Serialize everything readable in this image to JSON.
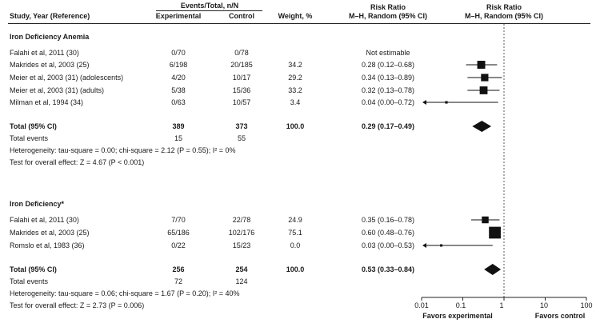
{
  "header": {
    "study_col": "Study, Year (Reference)",
    "events_group": "Events/Total, n/N",
    "experimental_col": "Experimental",
    "control_col": "Control",
    "weight_col": "Weight, %",
    "rr_col_line1": "Risk Ratio",
    "rr_col_line2": "M–H, Random (95% CI)",
    "plot_col_line1": "Risk Ratio",
    "plot_col_line2": "M–H, Random (95% CI)"
  },
  "groups": [
    {
      "title": "Iron Deficiency Anemia",
      "studies": [
        {
          "study": "Falahi et al, 2011 (30)",
          "exp": "0/70",
          "ctrl": "0/78",
          "weight": "",
          "rr_text": "Not estimable"
        },
        {
          "study": "Makrides et al, 2003 (25)",
          "exp": "6/198",
          "ctrl": "20/185",
          "weight": "34.2",
          "rr_text": "0.28 (0.12–0.68)"
        },
        {
          "study": "Meier et al, 2003 (31) (adolescents)",
          "exp": "4/20",
          "ctrl": "10/17",
          "weight": "29.2",
          "rr_text": "0.34 (0.13–0.89)"
        },
        {
          "study": "Meier et al, 2003 (31) (adults)",
          "exp": "5/38",
          "ctrl": "15/36",
          "weight": "33.2",
          "rr_text": "0.32 (0.13–0.78)"
        },
        {
          "study": "Milman et al, 1994 (34)",
          "exp": "0/63",
          "ctrl": "10/57",
          "weight": "3.4",
          "rr_text": "0.04 (0.00–0.72)"
        }
      ],
      "total_label": "Total (95% CI)",
      "total_exp": "389",
      "total_ctrl": "373",
      "total_weight": "100.0",
      "total_rr_text": "0.29 (0.17–0.49)",
      "events_label": "Total events",
      "events_exp": "15",
      "events_ctrl": "55",
      "heterogeneity": "Heterogeneity: tau-square = 0.00; chi-square = 2.12 (P = 0.55); I² = 0%",
      "overall_effect": "Test for overall effect: Z = 4.67 (P < 0.001)"
    },
    {
      "title": "Iron Deficiency*",
      "studies": [
        {
          "study": "Falahi et al, 2011 (30)",
          "exp": "7/70",
          "ctrl": "22/78",
          "weight": "24.9",
          "rr_text": "0.35 (0.16–0.78)"
        },
        {
          "study": "Makrides et al, 2003 (25)",
          "exp": "65/186",
          "ctrl": "102/176",
          "weight": "75.1",
          "rr_text": "0.60 (0.48–0.76)"
        },
        {
          "study": "Romslo et al, 1983 (36)",
          "exp": "0/22",
          "ctrl": "15/23",
          "weight": "0.0",
          "rr_text": "0.03 (0.00–0.53)"
        }
      ],
      "total_label": "Total (95% CI)",
      "total_exp": "256",
      "total_ctrl": "254",
      "total_weight": "100.0",
      "total_rr_text": "0.53 (0.33–0.84)",
      "events_label": "Total events",
      "events_exp": "72",
      "events_ctrl": "124",
      "heterogeneity": "Heterogeneity: tau-square = 0.06; chi-square = 1.67 (P = 0.20); I² = 40%",
      "overall_effect": "Test for overall effect: Z = 2.73 (P = 0.006)"
    }
  ],
  "axis": {
    "ticks": [
      "0.01",
      "0.1",
      "1",
      "10",
      "100"
    ],
    "favors_left": "Favors experimental",
    "favors_right": "Favors control"
  },
  "chart_data": {
    "type": "forest",
    "scale": "log",
    "xlim": [
      0.01,
      100
    ],
    "reference_line": 1,
    "groups": [
      {
        "name": "Iron Deficiency Anemia",
        "studies": [
          {
            "label": "Falahi et al, 2011 (30)",
            "estimate": null,
            "lower": null,
            "upper": null,
            "weight": null
          },
          {
            "label": "Makrides et al, 2003 (25)",
            "estimate": 0.28,
            "lower": 0.12,
            "upper": 0.68,
            "weight": 34.2
          },
          {
            "label": "Meier et al, 2003 (31) (adolescents)",
            "estimate": 0.34,
            "lower": 0.13,
            "upper": 0.89,
            "weight": 29.2
          },
          {
            "label": "Meier et al, 2003 (31) (adults)",
            "estimate": 0.32,
            "lower": 0.13,
            "upper": 0.78,
            "weight": 33.2
          },
          {
            "label": "Milman et al, 1994 (34)",
            "estimate": 0.04,
            "lower": 0.0,
            "upper": 0.72,
            "weight": 3.4
          }
        ],
        "pooled": {
          "estimate": 0.29,
          "lower": 0.17,
          "upper": 0.49
        }
      },
      {
        "name": "Iron Deficiency*",
        "studies": [
          {
            "label": "Falahi et al, 2011 (30)",
            "estimate": 0.35,
            "lower": 0.16,
            "upper": 0.78,
            "weight": 24.9
          },
          {
            "label": "Makrides et al, 2003 (25)",
            "estimate": 0.6,
            "lower": 0.48,
            "upper": 0.76,
            "weight": 75.1
          },
          {
            "label": "Romslo et al, 1983 (36)",
            "estimate": 0.03,
            "lower": 0.0,
            "upper": 0.53,
            "weight": 0.0
          }
        ],
        "pooled": {
          "estimate": 0.53,
          "lower": 0.33,
          "upper": 0.84
        }
      }
    ]
  }
}
